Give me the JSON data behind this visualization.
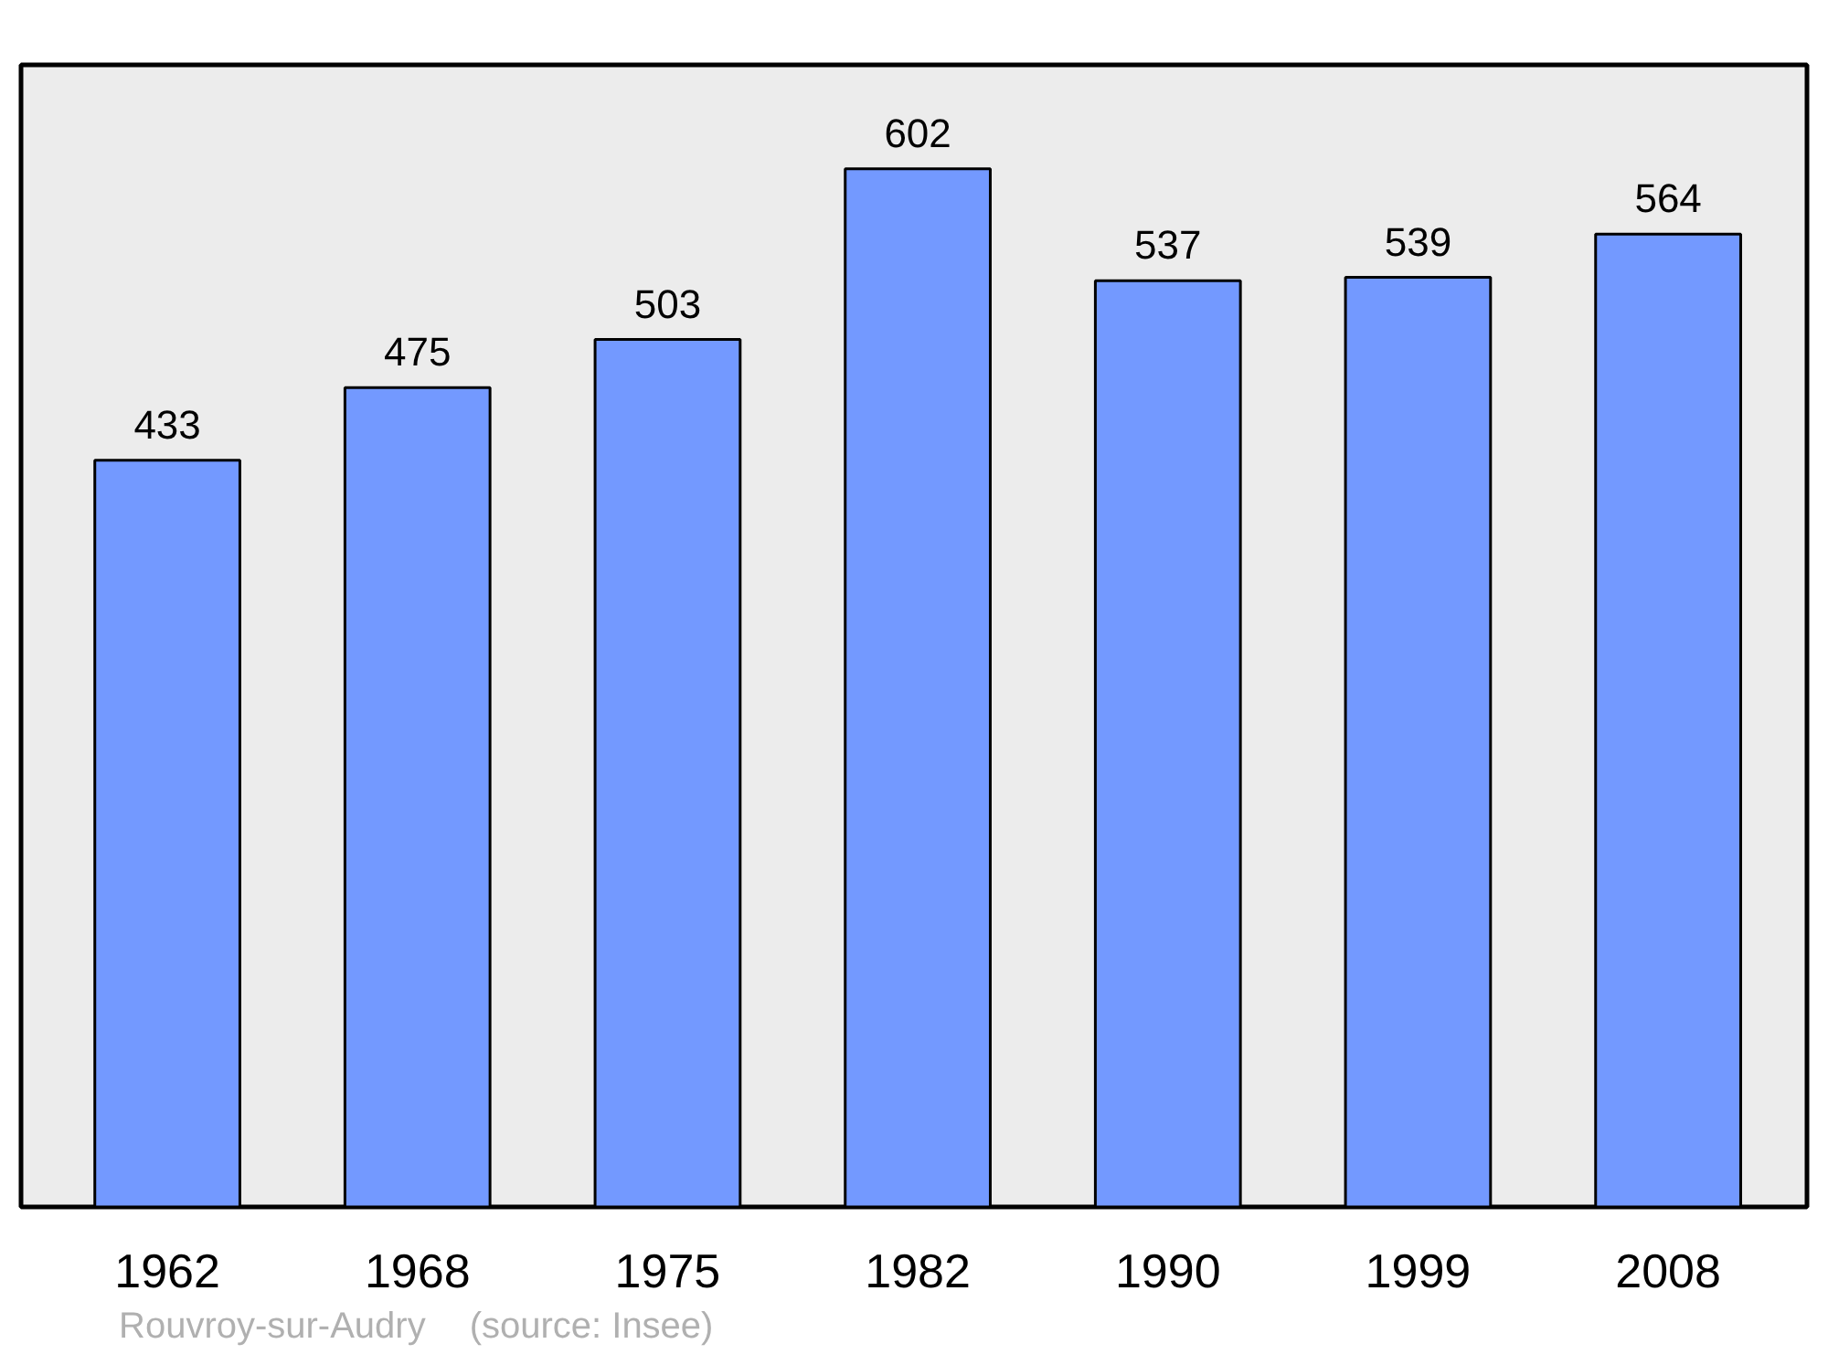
{
  "chart_data": {
    "type": "bar",
    "categories": [
      "1962",
      "1968",
      "1975",
      "1982",
      "1990",
      "1999",
      "2008"
    ],
    "values": [
      433,
      475,
      503,
      602,
      537,
      539,
      564
    ],
    "color": "#7399ff",
    "data_labels": true,
    "annotations": [
      "Rouvroy-sur-Audry",
      "(source: Insee)"
    ]
  }
}
